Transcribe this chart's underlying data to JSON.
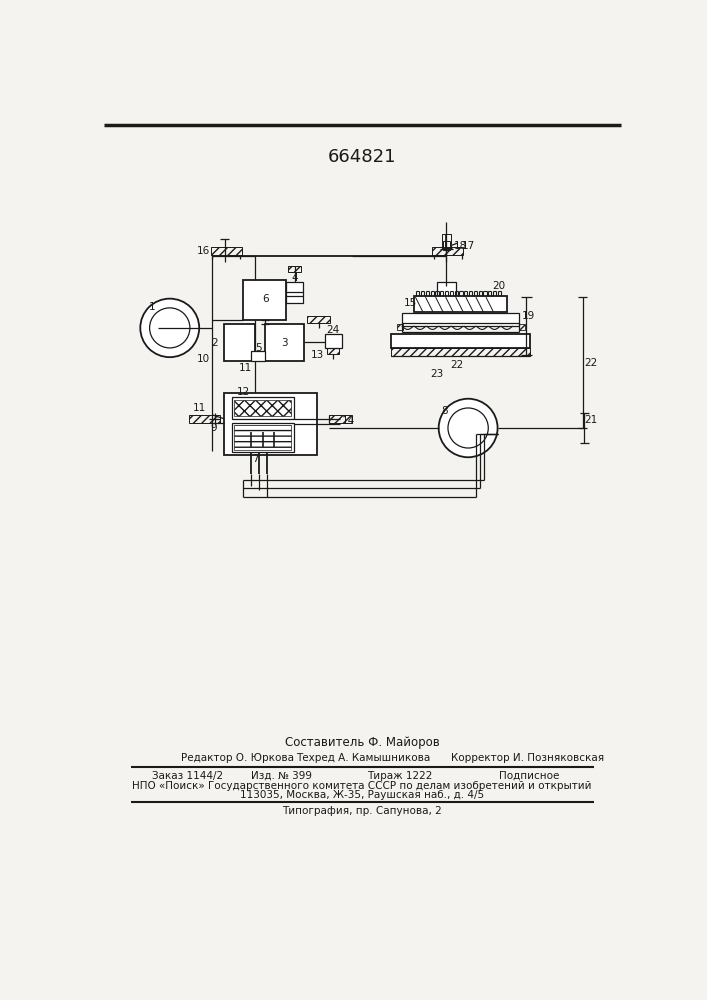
{
  "patent_number": "664821",
  "background_color": "#f5f3ef",
  "line_color": "#1a1a1a",
  "title_fontsize": 13,
  "small_fontsize": 7.5,
  "medium_fontsize": 8.5,
  "footer_line1": "Составитель Ф. Майоров",
  "footer_line2_left": "Редактор О. Юркова",
  "footer_line2_mid": "Техред А. Камышникова",
  "footer_line2_right": "Корректор И. Позняковская",
  "footer_line3_left": "Заказ 1144/2",
  "footer_line3_mid1": "Изд. № 399",
  "footer_line3_mid2": "Тираж 1222",
  "footer_line3_right": "Подписное",
  "footer_line4": "НПО «Поиск» Государственного комитета СССР по делам изобретений и открытий",
  "footer_line5": "113035, Москва, Ж-35, Раушская наб., д. 4/5",
  "footer_line6": "Типография, пр. Сапунова, 2",
  "drawing_bg": "#ffffff"
}
